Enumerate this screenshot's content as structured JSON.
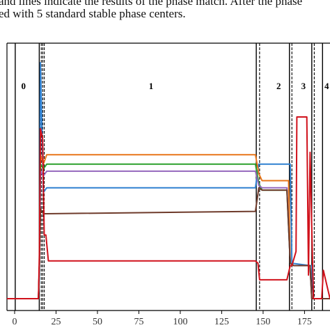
{
  "caption": {
    "line1": "and lines indicate the results of the phase match. After the phase",
    "line2": "ed with 5 standard stable phase centers."
  },
  "chart_data": {
    "type": "line",
    "xlim": [
      0,
      195
    ],
    "ylim": [
      0,
      1
    ],
    "x_ticks": [
      0,
      25,
      50,
      75,
      100,
      125,
      150,
      175
    ],
    "tick_labels": [
      "0",
      "25",
      "50",
      "75",
      "100",
      "125",
      "150",
      "175"
    ],
    "phase_labels": [
      {
        "text": "0",
        "x": 10
      },
      {
        "text": "1",
        "x": 87
      },
      {
        "text": "2",
        "x": 164
      },
      {
        "text": "3",
        "x": 179
      },
      {
        "text": "4",
        "x": 193
      }
    ],
    "phase_boundaries": [
      {
        "x": 5,
        "style": "solid"
      },
      {
        "x": 19.5,
        "style": "solid"
      },
      {
        "x": 20.7,
        "style": "dashed"
      },
      {
        "x": 21.6,
        "style": "dashed"
      },
      {
        "x": 22.5,
        "style": "dashed"
      },
      {
        "x": 150.5,
        "style": "solid"
      },
      {
        "x": 152.5,
        "style": "dashed"
      },
      {
        "x": 170.5,
        "style": "solid"
      },
      {
        "x": 172,
        "style": "dashed"
      },
      {
        "x": 184,
        "style": "solid"
      },
      {
        "x": 185.5,
        "style": "dashed"
      },
      {
        "x": 190.5,
        "style": "solid"
      }
    ],
    "series": [
      {
        "color": "#2f80d0",
        "x": [
          0,
          19,
          19.6,
          20.2,
          22,
          24,
          150,
          152,
          153,
          170,
          171,
          172,
          183,
          184,
          185,
          190,
          195
        ],
        "y": [
          0,
          0,
          0.1,
          1.0,
          0.45,
          0.47,
          0.47,
          0.57,
          0.57,
          0.57,
          0.57,
          0.15,
          0.14,
          0.14,
          0.0,
          0.0,
          0.0
        ]
      },
      {
        "color": "#e8761a",
        "x": [
          0,
          19,
          19.6,
          20.2,
          22,
          24,
          150,
          152,
          154,
          170,
          171,
          173,
          183,
          184,
          186,
          190,
          195
        ],
        "y": [
          0,
          0,
          0.15,
          0.61,
          0.57,
          0.61,
          0.61,
          0.53,
          0.5,
          0.5,
          0.15,
          0.14,
          0.14,
          0.0,
          0.0,
          0.0,
          0.0
        ]
      },
      {
        "color": "#2ca02c",
        "x": [
          0,
          19,
          19.6,
          20.2,
          22,
          24,
          150,
          152,
          154,
          169,
          171,
          173,
          183,
          184,
          186,
          190,
          195
        ],
        "y": [
          0,
          0,
          0.15,
          0.57,
          0.55,
          0.57,
          0.57,
          0.49,
          0.46,
          0.46,
          0.15,
          0.14,
          0.14,
          0.0,
          0.0,
          0.0,
          0.0
        ]
      },
      {
        "color": "#9467bd",
        "x": [
          0,
          19,
          19.6,
          20.2,
          22,
          24,
          150,
          152,
          154,
          169,
          171,
          173,
          183,
          184,
          186,
          190,
          195
        ],
        "y": [
          0,
          0,
          0.15,
          0.54,
          0.52,
          0.54,
          0.54,
          0.48,
          0.47,
          0.47,
          0.15,
          0.14,
          0.14,
          0.0,
          0.0,
          0.0,
          0.0
        ]
      },
      {
        "color": "#6e3a2a",
        "x": [
          0,
          19,
          19.6,
          20.2,
          22,
          24,
          150,
          152,
          154,
          169,
          171,
          173,
          183,
          184,
          186,
          190,
          195
        ],
        "y": [
          0,
          0,
          0.15,
          0.38,
          0.36,
          0.36,
          0.37,
          0.47,
          0.46,
          0.46,
          0.15,
          0.14,
          0.14,
          0.0,
          0.0,
          0.0,
          0.0
        ]
      },
      {
        "color": "#d0111b",
        "x": [
          0,
          19,
          19.6,
          20.2,
          21.5,
          22.5,
          23.5,
          25,
          150,
          151.5,
          152.5,
          169,
          171,
          172,
          174.5,
          175,
          181,
          182,
          183,
          184,
          185,
          190,
          191,
          195
        ],
        "y": [
          0,
          0,
          0.2,
          0.72,
          0.68,
          0.27,
          0.27,
          0.16,
          0.16,
          0.15,
          0.08,
          0.08,
          0.14,
          0.14,
          0.2,
          0.77,
          0.77,
          0.1,
          0.62,
          0.3,
          0.0,
          0.0,
          0.12,
          0.0
        ]
      }
    ]
  }
}
